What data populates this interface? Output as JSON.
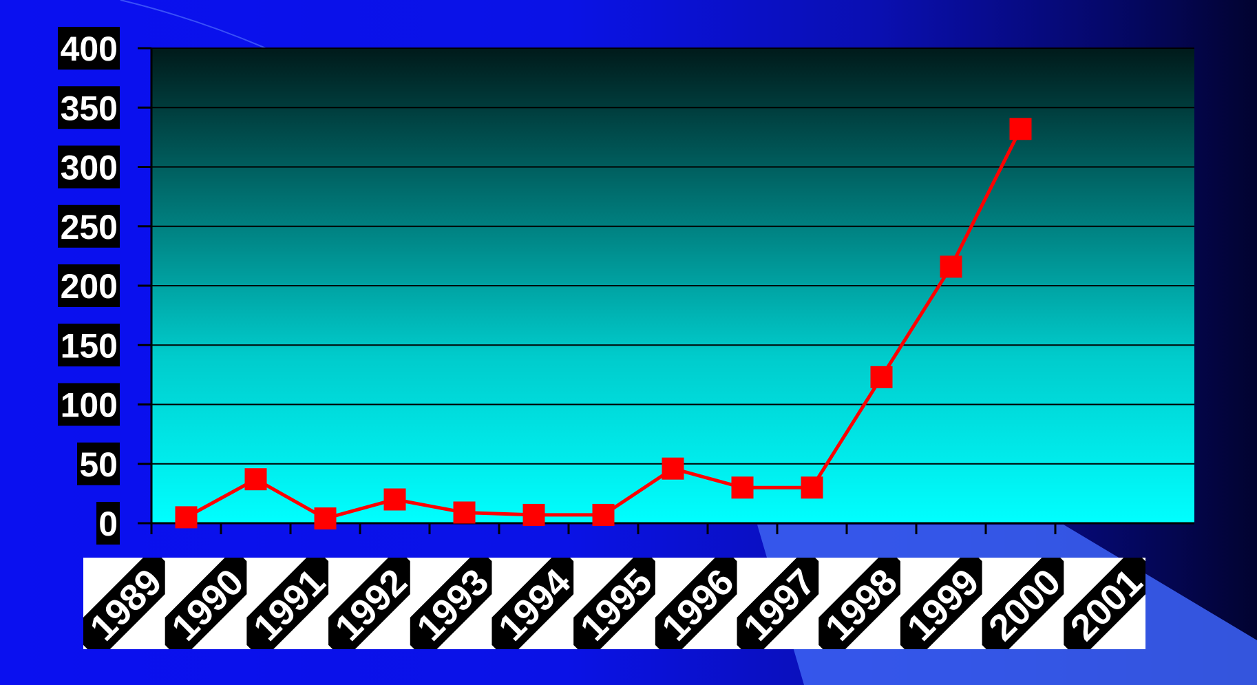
{
  "chart_data": {
    "type": "line",
    "title": "",
    "xlabel": "",
    "ylabel": "",
    "ylim": [
      0,
      400
    ],
    "yticks": [
      0,
      50,
      100,
      150,
      200,
      250,
      300,
      350,
      400
    ],
    "categories": [
      "1989",
      "1990",
      "1991",
      "1992",
      "1993",
      "1994",
      "1995",
      "1996",
      "1997",
      "1998",
      "1999",
      "2000",
      "2001"
    ],
    "values": [
      5,
      37,
      4,
      20,
      9,
      7,
      7,
      46,
      30,
      30,
      123,
      216,
      332
    ],
    "grid": true,
    "legend": "none",
    "colors": {
      "line": "#ff0000",
      "marker": "#ff0000",
      "plot_top": "#001a1a",
      "plot_bottom": "#00ffff",
      "label_box": "#000000",
      "label_text": "#ffffff"
    }
  }
}
